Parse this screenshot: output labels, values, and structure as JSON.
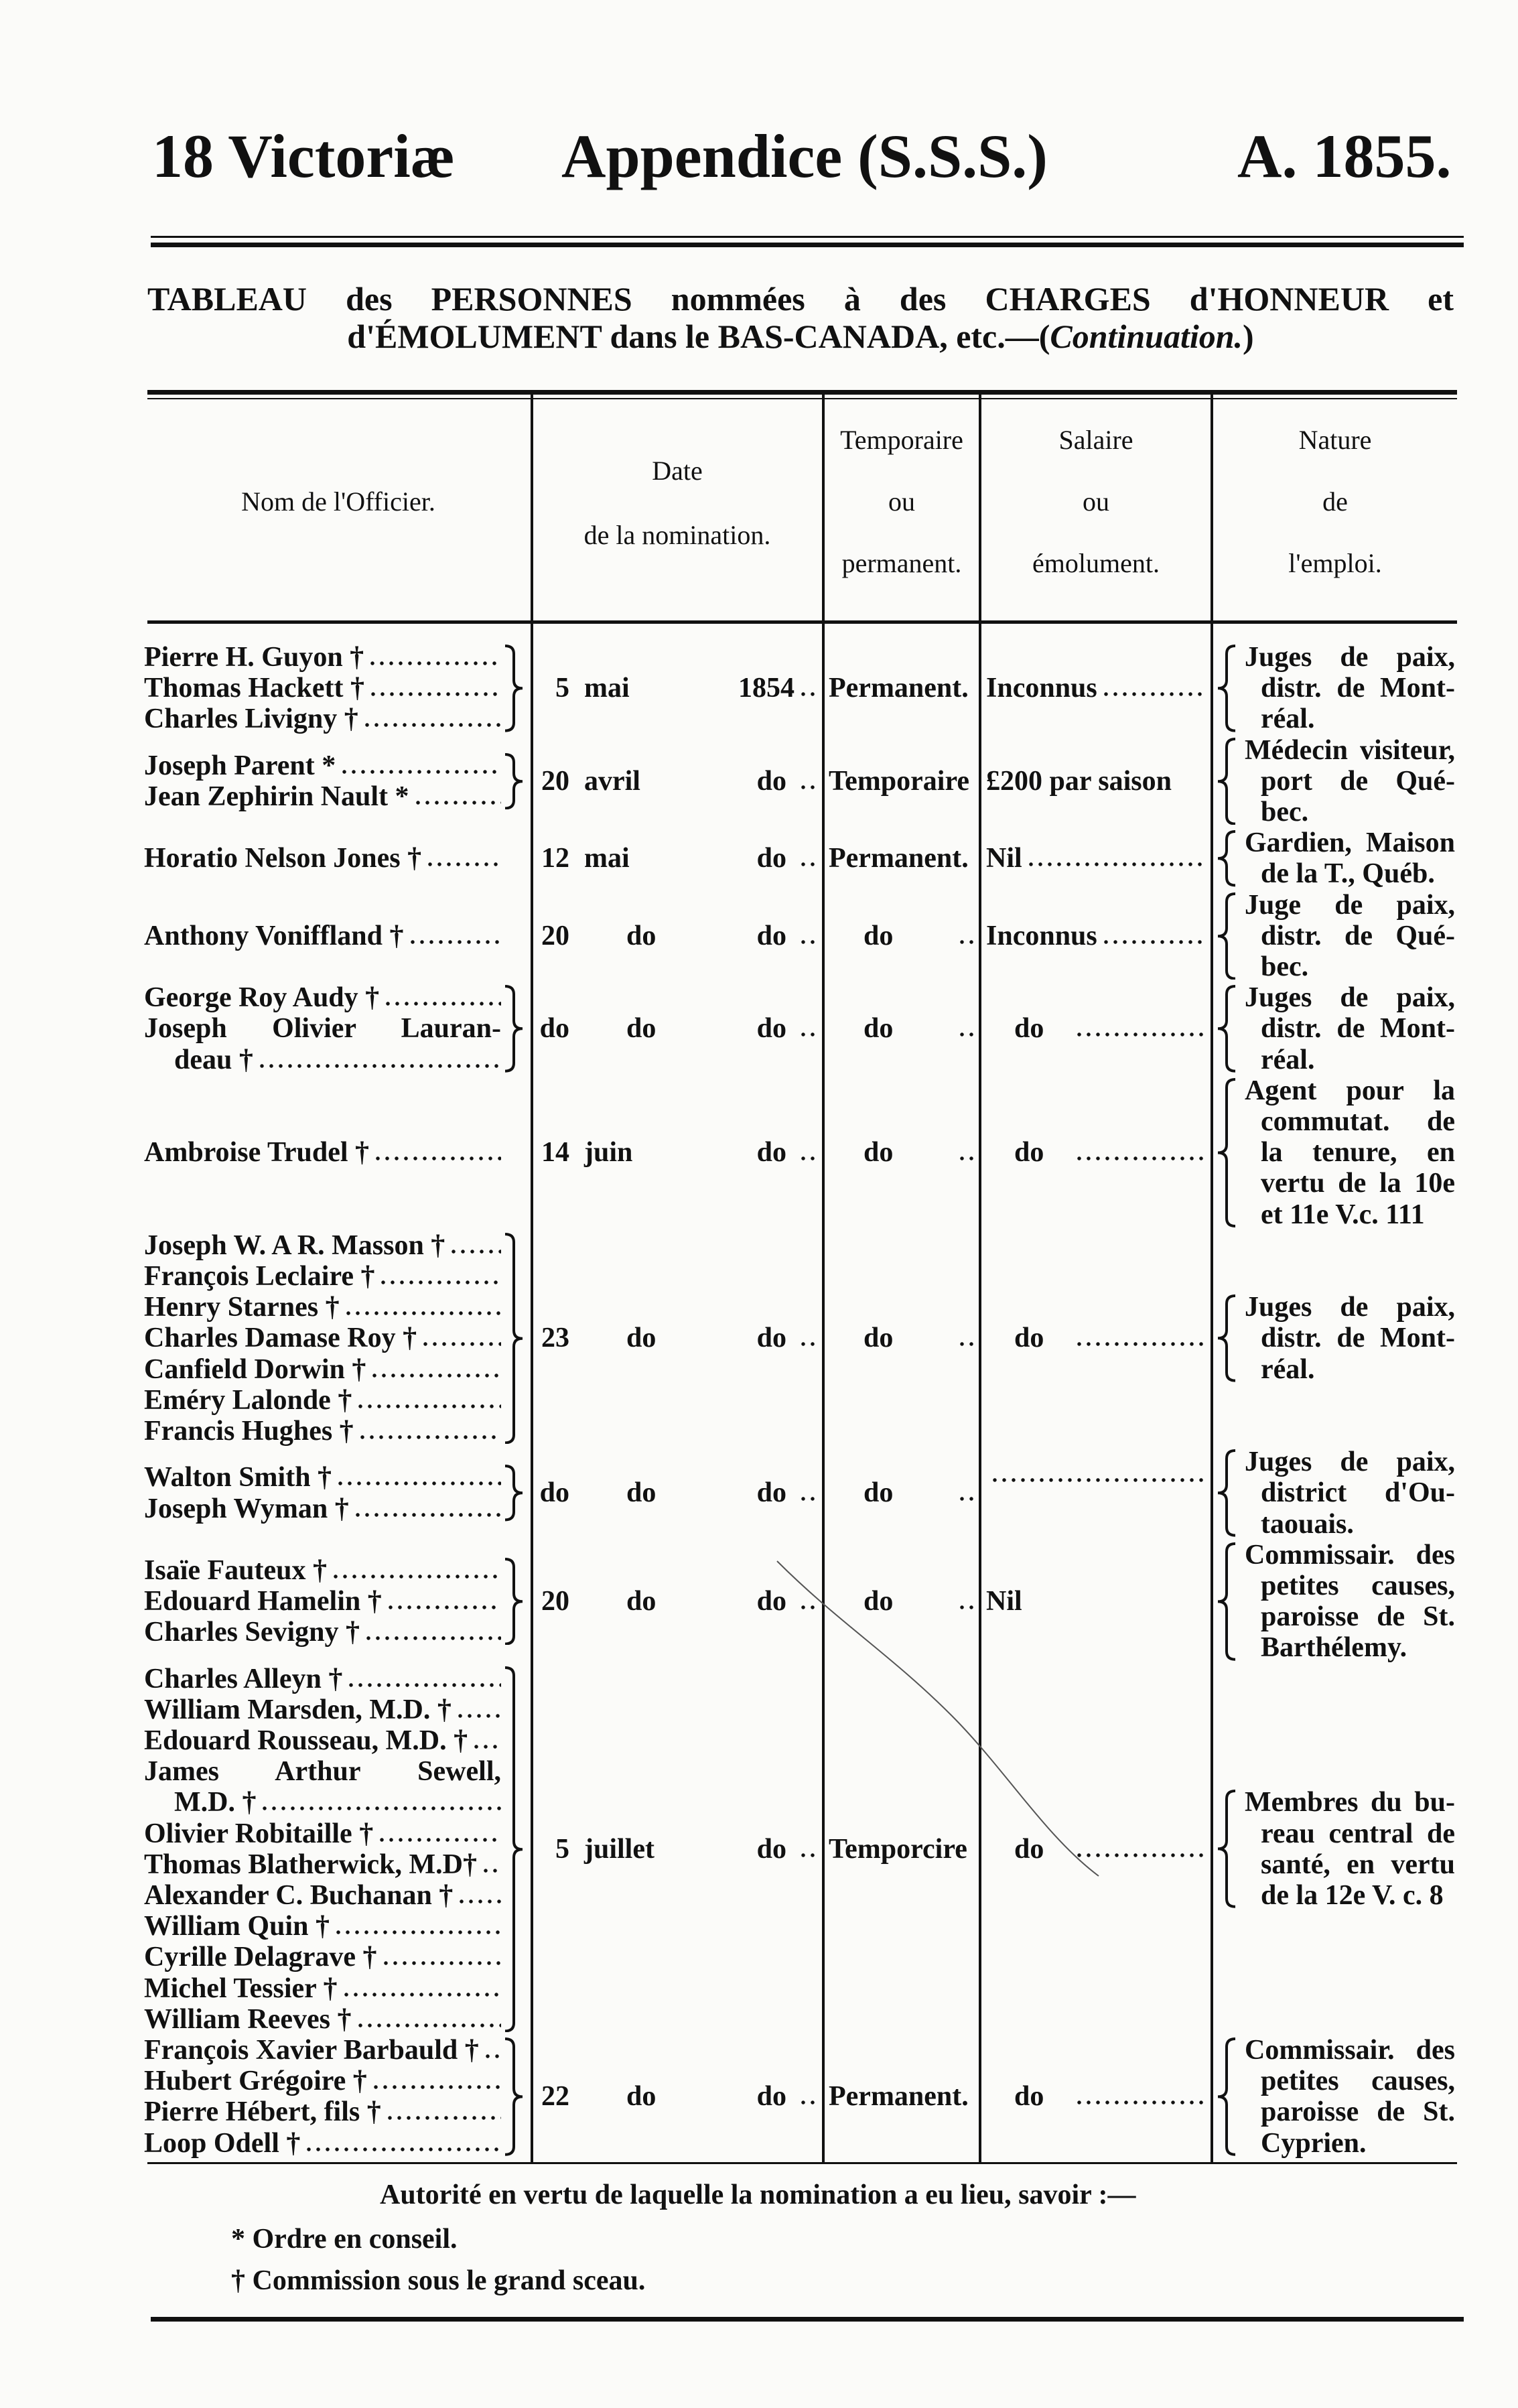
{
  "header": {
    "left": "18 Victoriæ",
    "center": "Appendice (S.S.S.)",
    "right": "A. 1855."
  },
  "title": {
    "line1": "TABLEAU des PERSONNES nommées à des CHARGES d'HONNEUR et",
    "line2_main": "d'ÉMOLUMENT dans le BAS-CANADA, etc.—(",
    "line2_italic": "Continuation.",
    "line2_end": ")"
  },
  "columns": {
    "name": "Nom de l'Officier.",
    "date": [
      "Date",
      "de la nomination."
    ],
    "temp": [
      "Temporaire",
      "ou",
      "permanent."
    ],
    "salary": [
      "Salaire",
      "ou",
      "émolument."
    ],
    "nature": [
      "Nature",
      "de",
      "l'emploi."
    ]
  },
  "groups": [
    {
      "names": [
        "Pierre H. Guyon †",
        "Thomas Hackett †",
        "Charles Livigny †"
      ],
      "day": "5",
      "month": "mai",
      "year": "1854",
      "temp": "Permanent.",
      "salary": "Inconnus",
      "nature": [
        "Juges de paix,",
        "distr. de Mont-",
        "réal."
      ]
    },
    {
      "names": [
        "Joseph Parent *",
        "Jean Zephirin Nault *"
      ],
      "day": "20",
      "month": "avril",
      "year": "do",
      "temp": "Temporaire",
      "salary": "£200 par saison",
      "nature": [
        "Médecin visiteur,",
        "port de Qué-",
        "bec."
      ]
    },
    {
      "names": [
        "Horatio Nelson Jones †"
      ],
      "day": "12",
      "month": "mai",
      "year": "do",
      "temp": "Permanent.",
      "salary": "Nil",
      "nature": [
        "Gardien, Maison",
        "de la T., Québ."
      ]
    },
    {
      "names": [
        "Anthony Voniffland †"
      ],
      "day": "20",
      "month": "do",
      "year": "do",
      "temp": "do",
      "salary": "Inconnus",
      "nature": [
        "Juge de paix,",
        "distr. de Qué-",
        "bec."
      ]
    },
    {
      "names": [
        "George Roy Audy †",
        "Joseph Olivier Lauran-",
        "deau †"
      ],
      "day": "do",
      "month": "do",
      "year": "do",
      "temp": "do",
      "salary": "do",
      "nature": [
        "Juges de paix,",
        "distr. de Mont-",
        "réal."
      ]
    },
    {
      "names": [
        "Ambroise Trudel †"
      ],
      "day": "14",
      "month": "juin",
      "year": "do",
      "temp": "do",
      "salary": "do",
      "nature": [
        "Agent pour la",
        "commutat. de",
        "la tenure, en",
        "vertu de la 10e",
        "et 11e V.c. 111"
      ]
    },
    {
      "names": [
        "Joseph W. A R. Masson †",
        "François Leclaire †",
        "Henry Starnes †",
        "Charles Damase Roy †",
        "Canfield Dorwin †",
        "Eméry Lalonde †",
        "Francis Hughes †"
      ],
      "day": "23",
      "month": "do",
      "year": "do",
      "temp": "do",
      "salary": "do",
      "nature": [
        "Juges de paix,",
        "distr. de Mont-",
        "réal."
      ]
    },
    {
      "names": [
        "Walton Smith †",
        "Joseph Wyman †"
      ],
      "day": "do",
      "month": "do",
      "year": "do",
      "temp": "do",
      "salary": "",
      "nature": [
        "Juges de paix,",
        "district d'Ou-",
        "taouais."
      ]
    },
    {
      "names": [
        "Isaïe Fauteux †",
        "Edouard Hamelin †",
        "Charles Sevigny †"
      ],
      "day": "20",
      "month": "do",
      "year": "do",
      "temp": "do",
      "salary": "Nil",
      "nature": [
        "Commissair. des",
        "petites causes,",
        "paroisse de St.",
        "Barthélemy."
      ]
    },
    {
      "names": [
        "Charles Alleyn †",
        "William Marsden, M.D. †",
        "Edouard Rousseau, M.D. †",
        "James Arthur Sewell,",
        "M.D. †",
        "Olivier Robitaille †",
        "Thomas Blatherwick, M.D†",
        "Alexander C. Buchanan †",
        "William Quin †",
        "Cyrille Delagrave †",
        "Michel Tessier †",
        "William Reeves †"
      ],
      "day": "5",
      "month": "juillet",
      "year": "do",
      "temp": "Temporcire",
      "salary": "do",
      "nature": [
        "Membres du bu-",
        "reau central de",
        "santé, en vertu",
        "de la 12e V. c. 8"
      ]
    },
    {
      "names": [
        "François Xavier Barbauld †",
        "Hubert Grégoire †",
        "Pierre Hébert, fils †",
        "Loop Odell †"
      ],
      "day": "22",
      "month": "do",
      "year": "do",
      "temp": "Permanent.",
      "salary": "do",
      "nature": [
        "Commissair. des",
        "petites causes,",
        "paroisse de St.",
        "Cyprien."
      ]
    }
  ],
  "footer": {
    "authority": "Autorité en vertu de laquelle la nomination a eu lieu, savoir :—",
    "legend": [
      "* Ordre en conseil.",
      "† Commission sous le grand sceau."
    ]
  }
}
